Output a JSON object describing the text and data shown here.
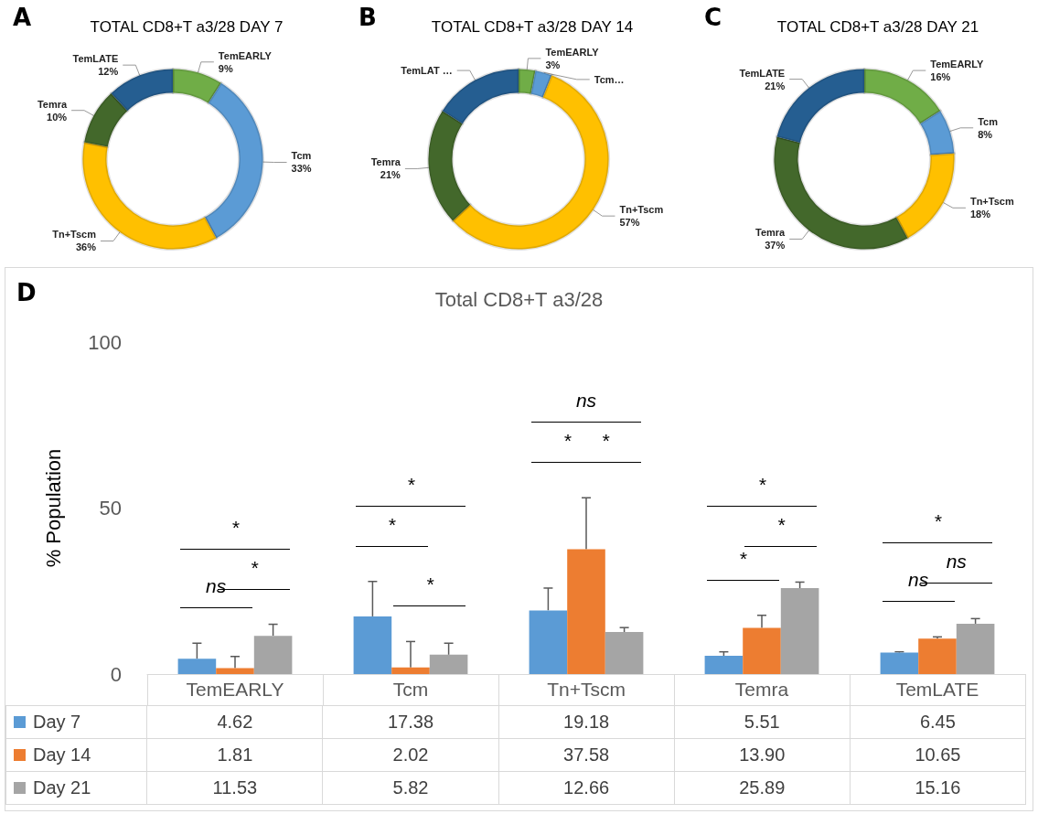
{
  "chart_data": [
    {
      "type": "donut",
      "title": "TOTAL CD8+T a3/28 DAY 7",
      "annotations": [
        "A"
      ],
      "categories": [
        "TemEARLY",
        "Tcm",
        "Tn+Tscm",
        "Temra",
        "TemLATE"
      ],
      "values": [
        9,
        33,
        36,
        10,
        12
      ],
      "value_labels": [
        "9%",
        "33%",
        "36%",
        "10%",
        "12%"
      ],
      "colors": [
        "#70ad47",
        "#5b9bd5",
        "#ffc000",
        "#43682b",
        "#255e91"
      ]
    },
    {
      "type": "donut",
      "title": "TOTAL CD8+T a3/28 DAY 14",
      "annotations": [
        "B"
      ],
      "categories": [
        "TemEARLY",
        "Tcm…",
        "Tn+Tscm",
        "Temra",
        "TemLAT …"
      ],
      "values": [
        3,
        3,
        57,
        21,
        16
      ],
      "value_labels": [
        "3%",
        null,
        "57%",
        "21%",
        null
      ],
      "colors": [
        "#70ad47",
        "#5b9bd5",
        "#ffc000",
        "#43682b",
        "#255e91"
      ]
    },
    {
      "type": "donut",
      "title": "TOTAL CD8+T a3/28 DAY 21",
      "annotations": [
        "C"
      ],
      "categories": [
        "TemEARLY",
        "Tcm",
        "Tn+Tscm",
        "Temra",
        "TemLATE"
      ],
      "values": [
        16,
        8,
        18,
        37,
        21
      ],
      "value_labels": [
        "16%",
        "8%",
        "18%",
        "37%",
        "21%"
      ],
      "colors": [
        "#70ad47",
        "#5b9bd5",
        "#ffc000",
        "#43682b",
        "#255e91"
      ]
    },
    {
      "type": "bar",
      "title": "Total CD8+T a3/28",
      "ylabel": "% Population",
      "categories": [
        "TemEARLY",
        "Tcm",
        "Tn+Tscm",
        "Temra",
        "TemLATE"
      ],
      "series": [
        {
          "name": "Day 7",
          "color": "#5b9bd5",
          "values": [
            4.62,
            17.38,
            19.18,
            5.51,
            6.45
          ],
          "value_labels": [
            "4.62",
            "17.38",
            "19.18",
            "5.51",
            "6.45"
          ],
          "errors": [
            [
              4.62,
              9.3
            ],
            [
              17.38,
              27.9
            ],
            [
              19.18,
              25.9
            ],
            [
              5.51,
              6.7
            ],
            [
              6.45,
              6.7
            ]
          ]
        },
        {
          "name": "Day 14",
          "color": "#ed7d31",
          "values": [
            1.81,
            2.02,
            37.58,
            13.9,
            10.65
          ],
          "value_labels": [
            "1.81",
            "2.02",
            "37.58",
            "13.90",
            "10.65"
          ],
          "errors": [
            [
              1.81,
              5.3
            ],
            [
              2.02,
              9.8
            ],
            [
              37.58,
              53.1
            ],
            [
              13.9,
              17.7
            ],
            [
              10.65,
              11.2
            ]
          ]
        },
        {
          "name": "Day 21",
          "color": "#a5a5a5",
          "values": [
            11.53,
            5.82,
            12.66,
            25.89,
            15.16
          ],
          "value_labels": [
            "11.53",
            "5.82",
            "12.66",
            "25.89",
            "15.16"
          ],
          "errors": [
            [
              11.53,
              15
            ],
            [
              5.82,
              9.3
            ],
            [
              12.66,
              14
            ],
            [
              25.89,
              27.7
            ],
            [
              15.16,
              16.7
            ]
          ]
        }
      ],
      "ylim": [
        0,
        100
      ],
      "yticks": [
        0,
        50,
        100
      ],
      "grid": false,
      "legend": "bottom",
      "annotations": [
        "D",
        "ns",
        "*",
        "*",
        "*",
        "*",
        "*",
        "*",
        "*",
        "ns",
        "*",
        "*",
        "*",
        "ns",
        "ns",
        "*"
      ]
    }
  ]
}
